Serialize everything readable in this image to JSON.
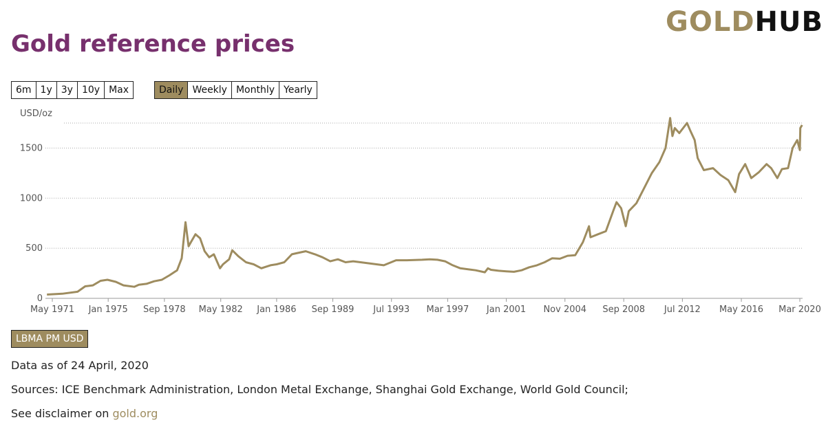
{
  "logo": {
    "part1": "GOLD",
    "part2": "HUB"
  },
  "title": "Gold reference prices",
  "range_buttons": [
    "6m",
    "1y",
    "3y",
    "10y",
    "Max"
  ],
  "frequency_buttons": [
    "Daily",
    "Weekly",
    "Monthly",
    "Yearly"
  ],
  "active_frequency": "Daily",
  "series_button": "LBMA PM USD",
  "as_of": "Data as of 24 April, 2020",
  "sources": "Sources: ICE Benchmark Administration, London Metal Exchange, Shanghai Gold Exchange, World Gold Council;",
  "disclaimer_prefix": "See disclaimer on ",
  "disclaimer_link": "gold.org",
  "colors": {
    "title": "#77306d",
    "accent": "#9e8c5f",
    "line": "#9e8c5f",
    "logo_dark": "#111111"
  },
  "chart_data": {
    "type": "line",
    "ylabel": "USD/oz",
    "ylim": [
      0,
      2000
    ],
    "y_ticks": [
      0,
      500,
      1000,
      1500
    ],
    "xlim": [
      1970.9,
      2020.35
    ],
    "x_ticks": [
      {
        "label": "May 1971",
        "value": 1971.35
      },
      {
        "label": "Jan 1975",
        "value": 1975.0
      },
      {
        "label": "Sep 1978",
        "value": 1978.67
      },
      {
        "label": "May 1982",
        "value": 1982.35
      },
      {
        "label": "Jan 1986",
        "value": 1986.0
      },
      {
        "label": "Sep 1989",
        "value": 1989.67
      },
      {
        "label": "Jul 1993",
        "value": 1993.5
      },
      {
        "label": "Mar 1997",
        "value": 1997.17
      },
      {
        "label": "Jan 2001",
        "value": 2001.0
      },
      {
        "label": "Nov 2004",
        "value": 2004.83
      },
      {
        "label": "Sep 2008",
        "value": 2008.67
      },
      {
        "label": "Jul 2012",
        "value": 2012.5
      },
      {
        "label": "May 2016",
        "value": 2016.35
      },
      {
        "label": "Mar 2020",
        "value": 2020.17
      }
    ],
    "grid": true,
    "series": [
      {
        "name": "LBMA PM USD",
        "x": [
          1971.0,
          1972.0,
          1973.0,
          1973.5,
          1974.0,
          1974.5,
          1974.95,
          1975.5,
          1976.0,
          1976.7,
          1977.0,
          1977.5,
          1978.0,
          1978.5,
          1979.0,
          1979.5,
          1979.8,
          1980.05,
          1980.25,
          1980.4,
          1980.7,
          1981.0,
          1981.3,
          1981.6,
          1981.9,
          1982.3,
          1982.5,
          1982.9,
          1983.1,
          1983.5,
          1984.0,
          1984.5,
          1985.0,
          1985.2,
          1985.6,
          1986.0,
          1986.5,
          1987.0,
          1987.3,
          1987.9,
          1988.5,
          1989.0,
          1989.5,
          1990.0,
          1990.5,
          1991.0,
          1992.0,
          1993.0,
          1993.8,
          1994.5,
          1995.5,
          1996.0,
          1996.5,
          1997.0,
          1997.5,
          1998.0,
          1998.5,
          1999.0,
          1999.6,
          1999.8,
          2000.0,
          2000.5,
          2001.0,
          2001.5,
          2002.0,
          2002.5,
          2003.0,
          2003.5,
          2004.0,
          2004.5,
          2005.0,
          2005.5,
          2006.0,
          2006.4,
          2006.5,
          2007.0,
          2007.5,
          2008.0,
          2008.2,
          2008.5,
          2008.8,
          2009.0,
          2009.5,
          2010.0,
          2010.5,
          2011.0,
          2011.4,
          2011.7,
          2011.85,
          2012.0,
          2012.3,
          2012.8,
          2013.0,
          2013.3,
          2013.5,
          2013.9,
          2014.5,
          2015.0,
          2015.5,
          2015.95,
          2016.2,
          2016.6,
          2017.0,
          2017.5,
          2018.0,
          2018.3,
          2018.7,
          2019.0,
          2019.4,
          2019.7,
          2020.0,
          2020.17,
          2020.2,
          2020.32
        ],
        "y": [
          38,
          46,
          66,
          120,
          130,
          175,
          185,
          165,
          130,
          115,
          135,
          145,
          170,
          185,
          230,
          280,
          400,
          760,
          520,
          560,
          640,
          600,
          470,
          410,
          440,
          300,
          340,
          390,
          480,
          420,
          360,
          340,
          300,
          310,
          330,
          340,
          360,
          440,
          450,
          470,
          440,
          410,
          370,
          390,
          360,
          370,
          350,
          330,
          380,
          380,
          385,
          390,
          385,
          370,
          330,
          300,
          290,
          280,
          260,
          300,
          285,
          275,
          270,
          265,
          280,
          310,
          330,
          360,
          400,
          395,
          425,
          430,
          560,
          720,
          610,
          640,
          670,
          880,
          960,
          900,
          720,
          870,
          950,
          1100,
          1250,
          1360,
          1500,
          1800,
          1620,
          1700,
          1650,
          1750,
          1680,
          1580,
          1400,
          1280,
          1300,
          1230,
          1180,
          1060,
          1240,
          1340,
          1200,
          1260,
          1340,
          1300,
          1200,
          1290,
          1300,
          1500,
          1580,
          1480,
          1700,
          1730
        ]
      }
    ]
  }
}
